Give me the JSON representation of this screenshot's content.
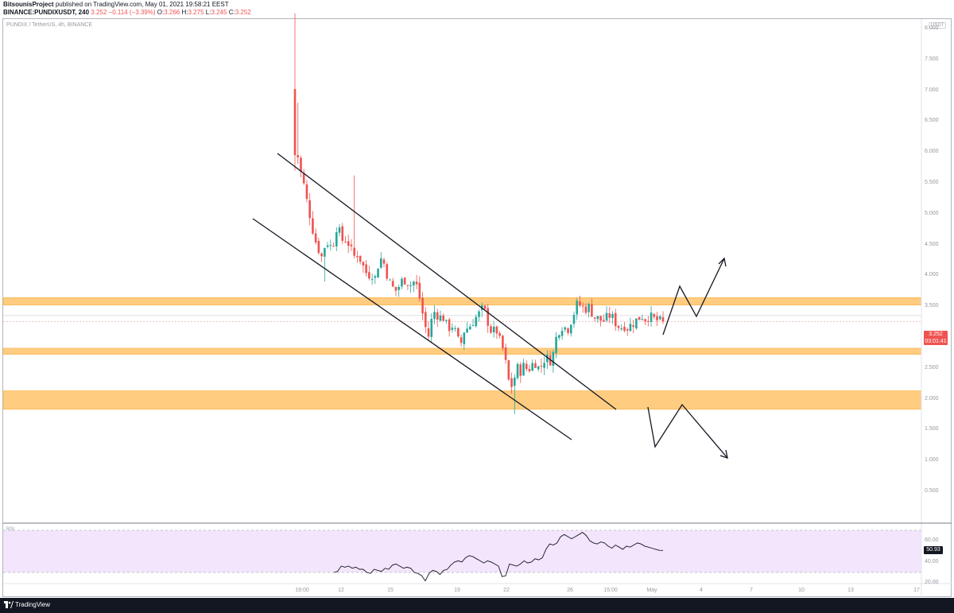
{
  "header": {
    "author": "BitsounisProject",
    "published_text": "published on TradingView.com, May 01, 2021 19:58:21 EEST",
    "symbol_full": "BINANCE:PUNDIXUSDT, 240",
    "last": "3.252",
    "change": "−0.114 (−3.39%)",
    "o_label": "O:",
    "o_value": "3.266",
    "h_label": "H:",
    "h_value": "3.275",
    "l_label": "L:",
    "l_value": "3.245",
    "c_label": "C:",
    "c_value": "3.252"
  },
  "chart_legend": "PUNDIX / TetherUS, 4h, BINANCE",
  "currency_badge": "USDT",
  "rsi_label": "RSI",
  "last_price_badge": {
    "price": "3.252",
    "countdown": "03:01:41"
  },
  "rsi_value_badge": "50.93",
  "footer": {
    "brand": "TradingView"
  },
  "colors": {
    "up": "#26a69a",
    "down": "#ef5350",
    "zone": "#ffcc80",
    "rsi_band": "#f3e5fc",
    "rsi_line": "#131722",
    "footer_bg": "#131722"
  },
  "icons": [
    "tradingview-logo-icon"
  ],
  "chart_data": [
    {
      "type": "candlestick",
      "symbol": "PUNDIX / TetherUS",
      "interval": "4h",
      "exchange": "BINANCE",
      "y_ticks": [
        "8.000",
        "7.500",
        "7.000",
        "6.500",
        "6.000",
        "5.500",
        "5.000",
        "4.500",
        "4.000",
        "3.500",
        "3.000",
        "2.500",
        "2.000",
        "1.500",
        "1.000",
        "0.500"
      ],
      "x_ticks": [
        "19:00",
        "12",
        "15",
        "19",
        "22",
        "26",
        "15:00",
        "May",
        "4",
        "7",
        "10",
        "13",
        "17"
      ],
      "ylim": [
        0.1,
        8.25
      ],
      "horizontal_zones": [
        {
          "from": 3.52,
          "to": 3.64
        },
        {
          "from": 2.72,
          "to": 2.82
        },
        {
          "from": 1.83,
          "to": 2.13
        }
      ],
      "close_path": [
        [
          0,
          6.0
        ],
        [
          3,
          5.95
        ],
        [
          6,
          5.7
        ],
        [
          9,
          5.55
        ],
        [
          12,
          5.3
        ],
        [
          15,
          5.1
        ],
        [
          18,
          4.9
        ],
        [
          22,
          4.6
        ],
        [
          26,
          4.45
        ],
        [
          30,
          4.3
        ],
        [
          34,
          4.5
        ],
        [
          38,
          4.55
        ],
        [
          42,
          4.4
        ],
        [
          46,
          4.8
        ],
        [
          50,
          4.7
        ],
        [
          54,
          4.55
        ],
        [
          58,
          4.6
        ],
        [
          62,
          4.45
        ],
        [
          66,
          4.3
        ],
        [
          70,
          4.35
        ],
        [
          74,
          4.25
        ],
        [
          78,
          4.1
        ],
        [
          82,
          4.0
        ],
        [
          86,
          4.05
        ],
        [
          90,
          3.95
        ],
        [
          94,
          4.2
        ],
        [
          98,
          4.3
        ],
        [
          102,
          4.1
        ],
        [
          106,
          3.9
        ],
        [
          110,
          3.8
        ],
        [
          114,
          3.75
        ],
        [
          118,
          3.85
        ],
        [
          122,
          3.95
        ],
        [
          126,
          3.9
        ],
        [
          130,
          3.85
        ],
        [
          134,
          3.9
        ],
        [
          138,
          3.8
        ],
        [
          142,
          3.5
        ],
        [
          146,
          3.2
        ],
        [
          150,
          3.0
        ],
        [
          154,
          3.3
        ],
        [
          158,
          3.45
        ],
        [
          162,
          3.3
        ],
        [
          166,
          3.35
        ],
        [
          170,
          3.2
        ],
        [
          174,
          3.15
        ],
        [
          178,
          3.2
        ],
        [
          182,
          3.0
        ],
        [
          186,
          2.85
        ],
        [
          190,
          3.1
        ],
        [
          194,
          3.15
        ],
        [
          198,
          3.2
        ],
        [
          202,
          3.3
        ],
        [
          206,
          3.35
        ],
        [
          210,
          3.45
        ],
        [
          214,
          3.4
        ],
        [
          218,
          3.2
        ],
        [
          222,
          3.05
        ],
        [
          226,
          3.15
        ],
        [
          230,
          2.95
        ],
        [
          234,
          2.8
        ],
        [
          238,
          2.5
        ],
        [
          242,
          2.15
        ],
        [
          246,
          2.3
        ],
        [
          250,
          2.5
        ],
        [
          254,
          2.45
        ],
        [
          258,
          2.55
        ],
        [
          262,
          2.45
        ],
        [
          266,
          2.55
        ],
        [
          270,
          2.6
        ],
        [
          274,
          2.5
        ],
        [
          278,
          2.55
        ],
        [
          282,
          2.7
        ],
        [
          286,
          2.6
        ],
        [
          290,
          2.7
        ],
        [
          294,
          3.0
        ],
        [
          298,
          3.15
        ],
        [
          302,
          3.2
        ],
        [
          306,
          3.1
        ],
        [
          310,
          3.25
        ],
        [
          314,
          3.4
        ],
        [
          318,
          3.55
        ],
        [
          322,
          3.5
        ],
        [
          326,
          3.45
        ],
        [
          330,
          3.5
        ],
        [
          334,
          3.4
        ],
        [
          338,
          3.3
        ],
        [
          342,
          3.3
        ],
        [
          346,
          3.25
        ],
        [
          350,
          3.3
        ],
        [
          354,
          3.35
        ],
        [
          358,
          3.3
        ],
        [
          362,
          3.2
        ],
        [
          366,
          3.15
        ],
        [
          370,
          3.2
        ],
        [
          374,
          3.15
        ],
        [
          378,
          3.2
        ],
        [
          382,
          3.25
        ],
        [
          386,
          3.3
        ],
        [
          390,
          3.35
        ],
        [
          394,
          3.3
        ],
        [
          398,
          3.35
        ],
        [
          402,
          3.3
        ],
        [
          406,
          3.28
        ],
        [
          410,
          3.25
        ],
        [
          414,
          3.252
        ]
      ]
    },
    {
      "type": "line",
      "name": "RSI",
      "y_ticks": [
        "60.00",
        "40.00",
        "20.00"
      ],
      "levels": [
        70,
        30
      ],
      "ylim": [
        17,
        76
      ],
      "values": [
        30,
        31,
        36,
        35,
        36,
        34,
        35,
        33,
        33,
        30,
        29,
        33,
        32,
        31,
        34,
        33,
        37,
        38,
        36,
        34,
        35,
        34,
        30,
        29,
        27,
        22,
        29,
        32,
        31,
        28,
        32,
        33,
        37,
        40,
        41,
        40,
        44,
        46,
        45,
        43,
        41,
        39,
        41,
        40,
        38,
        36,
        26,
        27,
        38,
        37,
        36,
        38,
        41,
        39,
        40,
        43,
        42,
        44,
        52,
        57,
        56,
        58,
        64,
        66,
        64,
        62,
        64,
        66,
        68,
        65,
        60,
        58,
        57,
        59,
        58,
        55,
        53,
        56,
        54,
        52,
        55,
        54,
        56,
        58,
        57,
        55,
        54,
        53,
        52,
        51,
        50.93
      ]
    }
  ]
}
